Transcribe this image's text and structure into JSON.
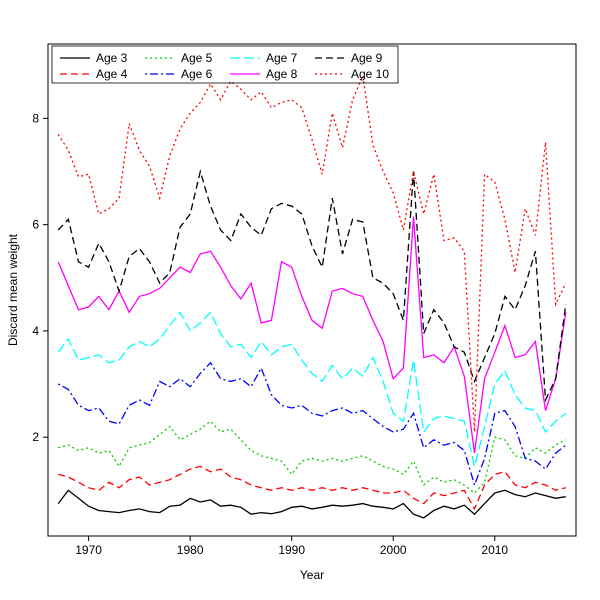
{
  "chart_data": {
    "type": "line",
    "title": "",
    "xlabel": "Year",
    "ylabel": "Discard mean weight",
    "xlim": [
      1966,
      2018
    ],
    "ylim": [
      0.14,
      9.4
    ],
    "x_ticks": [
      1970,
      1980,
      1990,
      2000,
      2010
    ],
    "y_ticks": [
      2,
      4,
      6,
      8
    ],
    "grid": false,
    "legend_position": "top-left-inside",
    "x": [
      1967,
      1968,
      1969,
      1970,
      1971,
      1972,
      1973,
      1974,
      1975,
      1976,
      1977,
      1978,
      1979,
      1980,
      1981,
      1982,
      1983,
      1984,
      1985,
      1986,
      1987,
      1988,
      1989,
      1990,
      1991,
      1992,
      1993,
      1994,
      1995,
      1996,
      1997,
      1998,
      1999,
      2000,
      2001,
      2002,
      2003,
      2004,
      2005,
      2006,
      2007,
      2008,
      2009,
      2010,
      2011,
      2012,
      2013,
      2014,
      2015,
      2016,
      2017
    ],
    "series": [
      {
        "name": "Age 3",
        "color": "#000000",
        "dash": "solid",
        "values": [
          0.75,
          1.0,
          0.85,
          0.7,
          0.62,
          0.6,
          0.58,
          0.62,
          0.65,
          0.6,
          0.58,
          0.7,
          0.72,
          0.85,
          0.78,
          0.82,
          0.7,
          0.72,
          0.68,
          0.55,
          0.58,
          0.56,
          0.6,
          0.68,
          0.7,
          0.65,
          0.68,
          0.72,
          0.7,
          0.72,
          0.75,
          0.7,
          0.68,
          0.65,
          0.75,
          0.55,
          0.48,
          0.62,
          0.7,
          0.65,
          0.72,
          0.55,
          0.75,
          0.95,
          1.0,
          0.92,
          0.88,
          0.95,
          0.9,
          0.85,
          0.88
        ]
      },
      {
        "name": "Age 4",
        "color": "#FF0000",
        "dash": "dashed",
        "values": [
          1.3,
          1.25,
          1.15,
          1.05,
          1.0,
          1.15,
          1.05,
          1.2,
          1.25,
          1.1,
          1.15,
          1.2,
          1.3,
          1.4,
          1.45,
          1.35,
          1.4,
          1.25,
          1.2,
          1.1,
          1.05,
          1.0,
          1.05,
          1.0,
          1.05,
          1.0,
          1.05,
          1.0,
          1.05,
          1.0,
          1.05,
          1.0,
          0.95,
          0.95,
          1.0,
          0.85,
          0.75,
          0.95,
          0.9,
          0.95,
          1.0,
          0.65,
          1.1,
          1.3,
          1.35,
          1.1,
          1.05,
          1.15,
          1.1,
          1.0,
          1.05
        ]
      },
      {
        "name": "Age 5",
        "color": "#00CD00",
        "dash": "dotted",
        "values": [
          1.8,
          1.85,
          1.75,
          1.8,
          1.7,
          1.75,
          1.45,
          1.8,
          1.85,
          1.9,
          2.05,
          2.2,
          1.95,
          2.05,
          2.15,
          2.3,
          2.1,
          2.15,
          1.95,
          1.75,
          1.65,
          1.6,
          1.55,
          1.3,
          1.55,
          1.6,
          1.55,
          1.6,
          1.55,
          1.6,
          1.65,
          1.55,
          1.45,
          1.4,
          1.3,
          1.55,
          1.1,
          1.25,
          1.15,
          1.2,
          1.1,
          0.95,
          1.15,
          2.0,
          1.95,
          1.65,
          1.6,
          1.8,
          1.7,
          1.85,
          1.95
        ]
      },
      {
        "name": "Age 6",
        "color": "#0000FF",
        "dash": "dotdash",
        "values": [
          3.0,
          2.9,
          2.6,
          2.5,
          2.55,
          2.3,
          2.25,
          2.6,
          2.7,
          2.6,
          3.05,
          2.95,
          3.1,
          2.95,
          3.2,
          3.4,
          3.1,
          3.05,
          3.1,
          2.95,
          3.3,
          2.8,
          2.6,
          2.55,
          2.6,
          2.45,
          2.4,
          2.5,
          2.55,
          2.45,
          2.5,
          2.35,
          2.2,
          2.1,
          2.15,
          2.45,
          1.8,
          1.95,
          1.85,
          1.9,
          1.75,
          1.1,
          1.6,
          2.45,
          2.5,
          2.2,
          1.6,
          1.55,
          1.4,
          1.7,
          1.85
        ]
      },
      {
        "name": "Age 7",
        "color": "#00FFFF",
        "dash": "longdash",
        "values": [
          3.6,
          3.85,
          3.45,
          3.5,
          3.55,
          3.4,
          3.45,
          3.7,
          3.8,
          3.7,
          3.85,
          4.1,
          4.35,
          4.0,
          4.15,
          4.35,
          3.95,
          3.7,
          3.75,
          3.5,
          3.8,
          3.55,
          3.7,
          3.75,
          3.45,
          3.2,
          3.05,
          3.35,
          3.1,
          3.3,
          3.15,
          3.5,
          3.05,
          2.45,
          2.3,
          3.45,
          2.1,
          2.35,
          2.4,
          2.35,
          2.3,
          1.45,
          2.2,
          3.0,
          3.25,
          2.8,
          2.55,
          2.5,
          2.1,
          2.3,
          2.45
        ]
      },
      {
        "name": "Age 8",
        "color": "#FF00FF",
        "dash": "solid",
        "values": [
          5.3,
          4.85,
          4.4,
          4.45,
          4.65,
          4.4,
          4.75,
          4.35,
          4.65,
          4.7,
          4.8,
          5.0,
          5.2,
          5.1,
          5.45,
          5.5,
          5.2,
          4.85,
          4.6,
          4.9,
          4.15,
          4.2,
          5.3,
          5.2,
          4.65,
          4.2,
          4.05,
          4.75,
          4.8,
          4.7,
          4.65,
          4.2,
          3.8,
          3.1,
          3.3,
          6.15,
          3.5,
          3.55,
          3.4,
          3.7,
          3.15,
          1.7,
          3.1,
          3.6,
          4.1,
          3.5,
          3.55,
          3.8,
          2.5,
          3.1,
          4.35
        ]
      },
      {
        "name": "Age 9",
        "color": "#000000",
        "dash": "dashed",
        "values": [
          5.9,
          6.1,
          5.3,
          5.2,
          5.65,
          5.3,
          4.75,
          5.4,
          5.55,
          5.3,
          4.9,
          5.1,
          5.95,
          6.2,
          7.0,
          6.35,
          5.9,
          5.7,
          6.2,
          5.95,
          5.8,
          6.3,
          6.4,
          6.35,
          6.2,
          5.6,
          5.2,
          6.5,
          5.45,
          6.1,
          6.05,
          5.0,
          4.9,
          4.7,
          4.2,
          7.0,
          3.95,
          4.4,
          4.15,
          3.7,
          3.6,
          3.05,
          3.5,
          3.95,
          4.65,
          4.4,
          4.85,
          5.5,
          2.7,
          3.1,
          4.5
        ]
      },
      {
        "name": "Age 10",
        "color": "#FF0000",
        "dash": "dotted",
        "values": [
          7.7,
          7.4,
          6.9,
          6.95,
          6.2,
          6.3,
          6.5,
          7.9,
          7.4,
          7.1,
          6.5,
          7.3,
          7.8,
          8.1,
          8.3,
          8.65,
          8.35,
          8.7,
          8.55,
          8.35,
          8.5,
          8.2,
          8.3,
          8.35,
          8.2,
          7.6,
          6.95,
          8.1,
          7.45,
          8.35,
          8.8,
          7.5,
          7.0,
          6.6,
          5.9,
          7.0,
          6.2,
          6.95,
          5.7,
          5.75,
          5.5,
          2.1,
          6.95,
          6.8,
          6.1,
          5.1,
          6.3,
          5.8,
          7.55,
          4.5,
          4.9
        ]
      }
    ]
  }
}
